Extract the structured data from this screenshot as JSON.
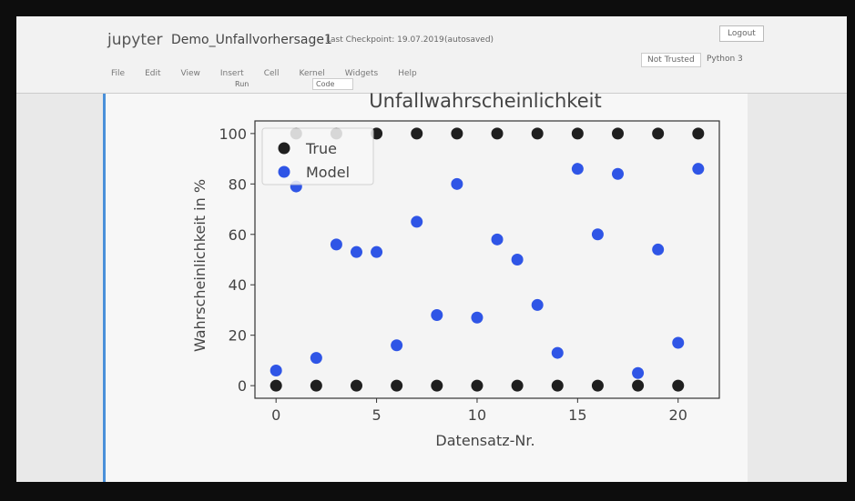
{
  "ui": {
    "logo": "jupyter",
    "notebook": "Demo_Unfallvorhersage1",
    "checkpoint": "Last Checkpoint: 19.07.2019",
    "autosaved": "(autosaved)",
    "logout": "Logout",
    "menu": [
      "File",
      "Edit",
      "View",
      "Insert",
      "Cell",
      "Kernel",
      "Widgets",
      "Help"
    ],
    "trusted": "Not Trusted",
    "kernel": "Python 3",
    "run": "Run",
    "cell_type": "Code"
  },
  "chart_data": {
    "type": "scatter",
    "title": "Unfallwahrscheinlichkeit",
    "x_label": "Datensatz-Nr.",
    "y_label": "Wahrscheinlichkeit in %",
    "x": [
      0,
      1,
      2,
      3,
      4,
      5,
      6,
      7,
      8,
      9,
      10,
      11,
      12,
      13,
      14,
      15,
      16,
      17,
      18,
      19,
      20,
      21
    ],
    "series": [
      {
        "name": "True",
        "color": "#1f1f1f",
        "values": [
          0,
          100,
          0,
          100,
          0,
          100,
          0,
          100,
          0,
          100,
          0,
          100,
          0,
          100,
          0,
          100,
          0,
          100,
          0,
          100,
          0,
          100
        ]
      },
      {
        "name": "Model",
        "color": "#2f55e6",
        "values": [
          6,
          79,
          11,
          56,
          53,
          53,
          16,
          65,
          28,
          80,
          27,
          58,
          50,
          32,
          13,
          86,
          60,
          84,
          5,
          54,
          17,
          86
        ]
      }
    ],
    "xlim": [
      -1.05,
      22.05
    ],
    "ylim": [
      -5,
      105
    ],
    "xticks": [
      0,
      5,
      10,
      15,
      20
    ],
    "yticks": [
      0,
      20,
      40,
      60,
      80,
      100
    ],
    "legend": "upper left",
    "grid": false
  }
}
